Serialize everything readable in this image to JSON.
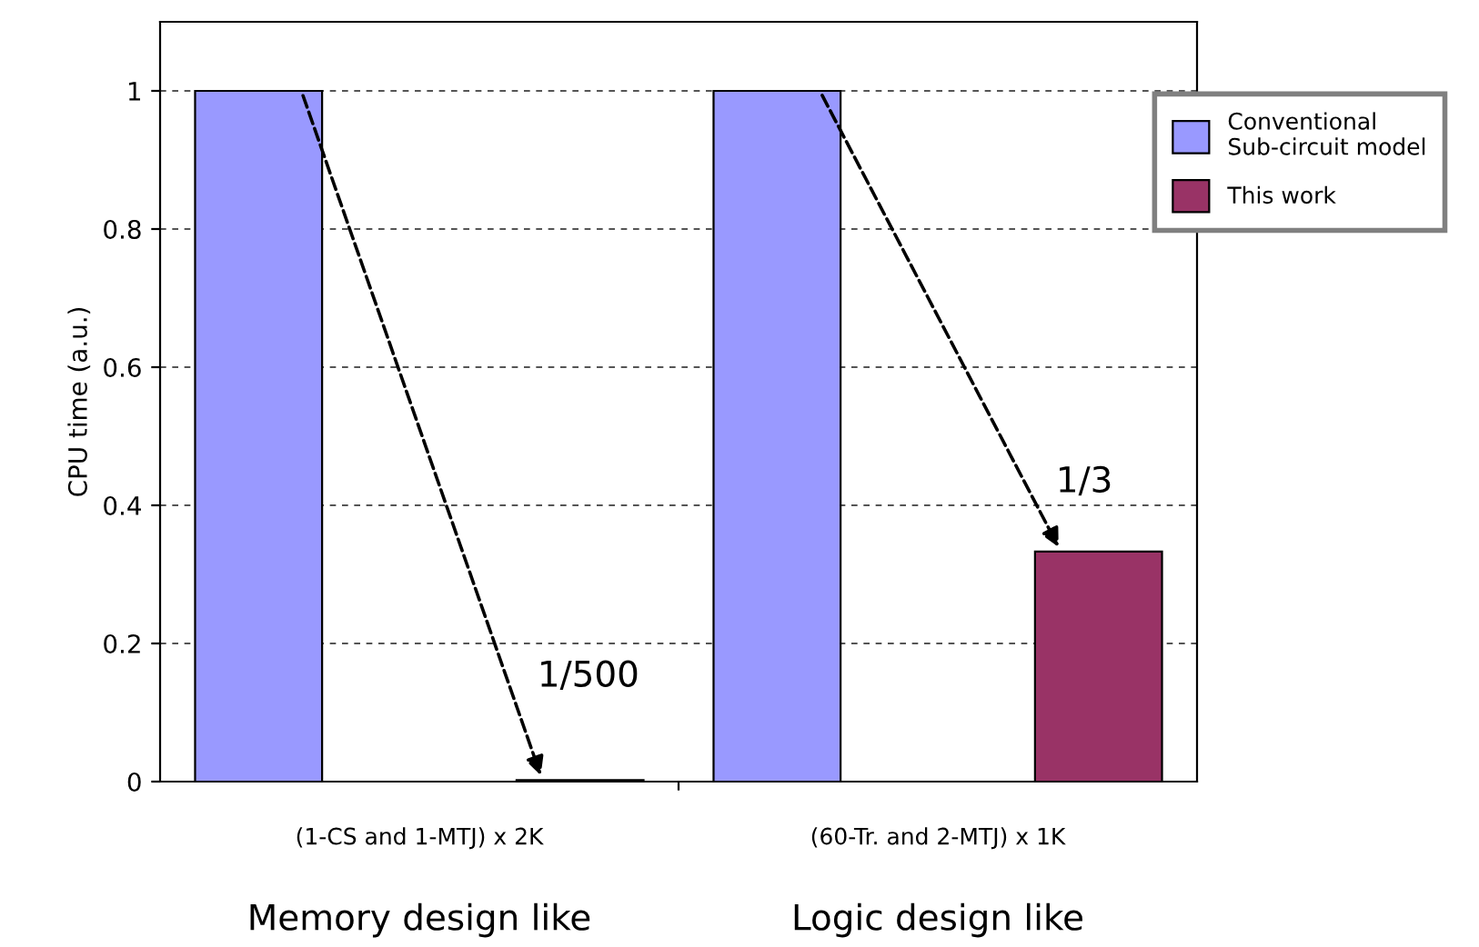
{
  "chart_data": {
    "type": "bar",
    "ylabel": "CPU time (a.u.)",
    "categories": [
      "(1-CS and 1-MTJ) x 2K",
      "(60-Tr. and 2-MTJ) x 1K"
    ],
    "series": [
      {
        "name": "Conventional\nSub-circuit model",
        "color": "#9999ff",
        "values": [
          1,
          1
        ]
      },
      {
        "name": "This work",
        "color": "#993366",
        "values": [
          0.002,
          0.333
        ]
      }
    ],
    "ylim": [
      0,
      1.1
    ],
    "yticks": [
      0,
      0.2,
      0.4,
      0.6,
      0.8,
      1
    ],
    "grid": "y",
    "legend": "top right",
    "annotations": [
      "1/500",
      "1/3",
      "Memory design like",
      "Logic design like"
    ]
  }
}
